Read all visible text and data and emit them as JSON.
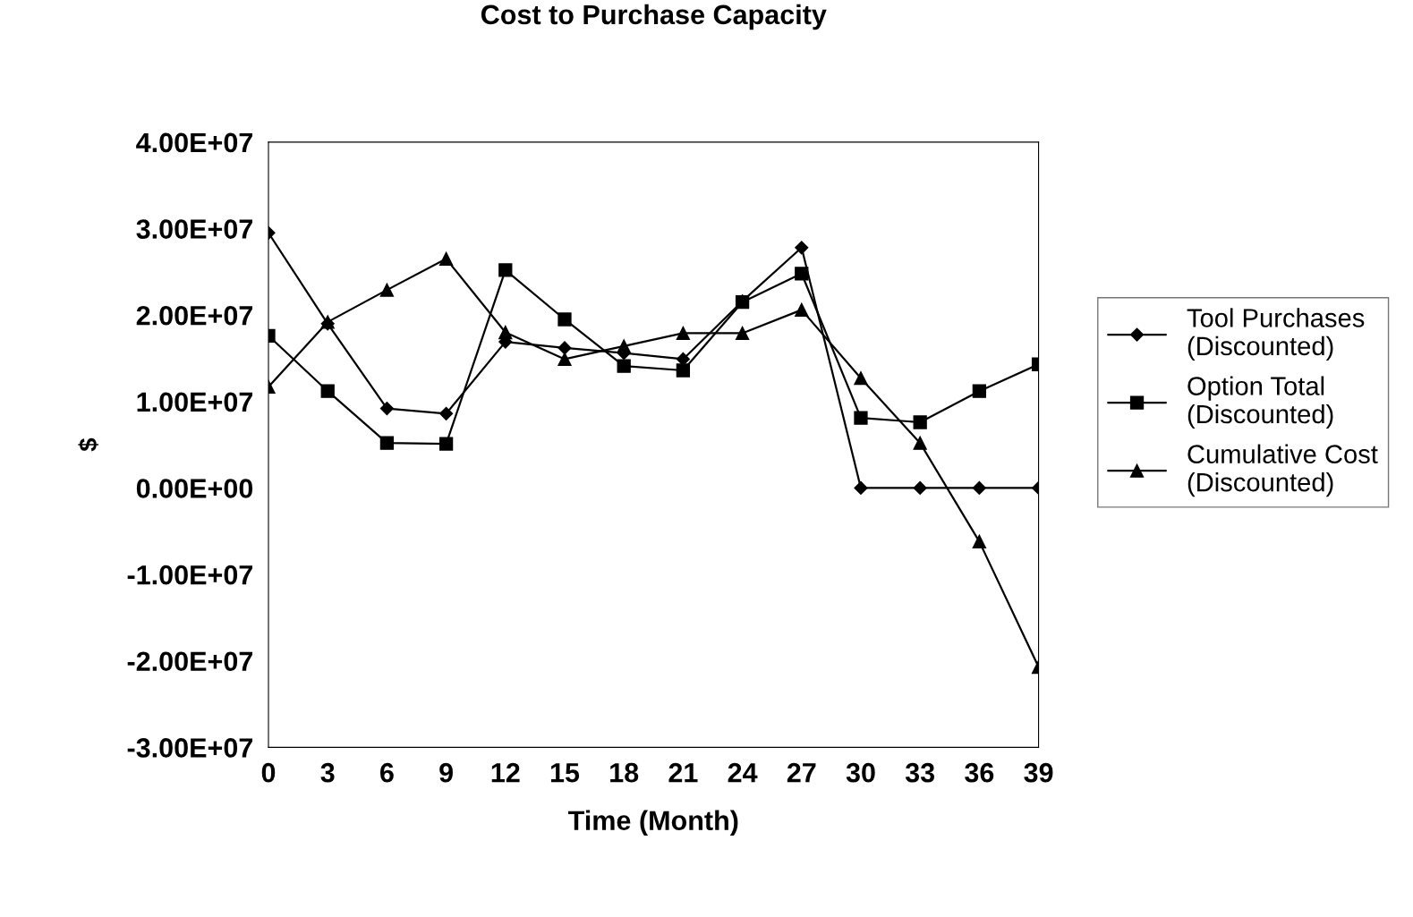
{
  "chart_data": {
    "type": "line",
    "title": "Cost to Purchase Capacity",
    "xlabel": "Time (Month)",
    "ylabel": "$",
    "categories": [
      "0",
      "3",
      "6",
      "9",
      "12",
      "15",
      "18",
      "21",
      "24",
      "27",
      "30",
      "33",
      "36",
      "39"
    ],
    "series": [
      {
        "name": "Tool Purchases\n(Discounted)",
        "color": "#000000",
        "marker": "diamond",
        "values": [
          29500000,
          19000000,
          9200000,
          8600000,
          16900000,
          16200000,
          15600000,
          14900000,
          21600000,
          27800000,
          0,
          0,
          0,
          0
        ]
      },
      {
        "name": "Option Total\n(Discounted)",
        "color": "#000000",
        "marker": "square",
        "values": [
          17600000,
          11200000,
          5200000,
          5100000,
          25200000,
          19500000,
          14100000,
          13600000,
          21500000,
          24800000,
          8100000,
          7600000,
          11200000,
          14300000
        ]
      },
      {
        "name": "Cumulative Cost\n(Discounted)",
        "color": "#000000",
        "marker": "triangle",
        "values": [
          11700000,
          19200000,
          22900000,
          26500000,
          18000000,
          14900000,
          16400000,
          17900000,
          17900000,
          20600000,
          12700000,
          5200000,
          -6200000,
          -20700000
        ]
      }
    ],
    "ylim": [
      -30000000,
      40000000
    ],
    "yticks": [
      {
        "value": -30000000,
        "label": "-3.00E+07"
      },
      {
        "value": -20000000,
        "label": "-2.00E+07"
      },
      {
        "value": -10000000,
        "label": "-1.00E+07"
      },
      {
        "value": 0,
        "label": "0.00E+00"
      },
      {
        "value": 10000000,
        "label": "1.00E+07"
      },
      {
        "value": 20000000,
        "label": "2.00E+07"
      },
      {
        "value": 30000000,
        "label": "3.00E+07"
      },
      {
        "value": 40000000,
        "label": "4.00E+07"
      }
    ],
    "legend": "right",
    "line_style": "solid"
  }
}
